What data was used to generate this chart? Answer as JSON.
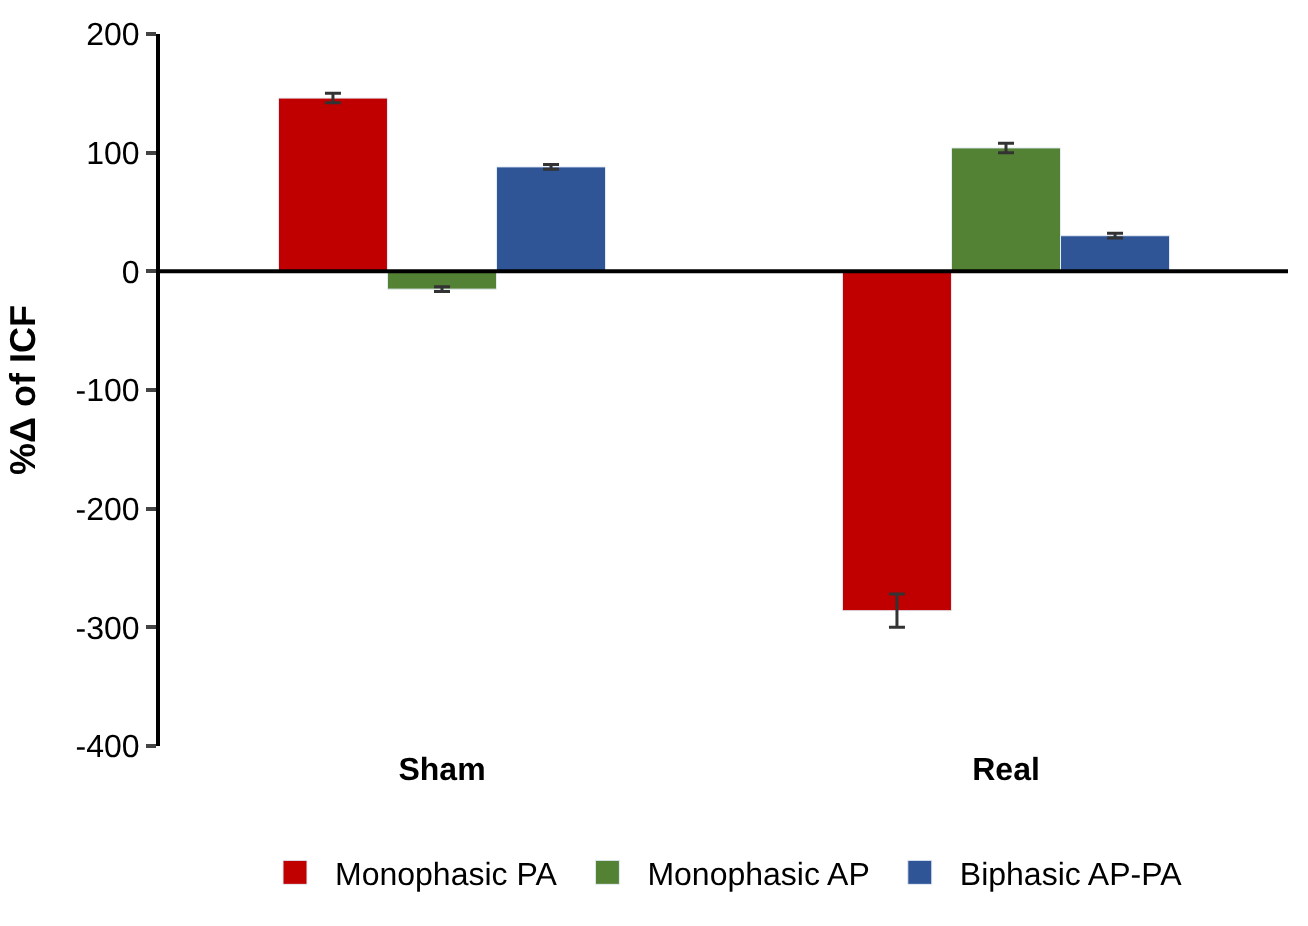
{
  "chart_data": {
    "type": "bar",
    "ylabel": "%Δ of ICF",
    "categories": [
      "Sham",
      "Real"
    ],
    "series": [
      {
        "name": "Monophasic PA",
        "color": "#c00000",
        "values": [
          146,
          -286
        ],
        "errors": [
          4,
          14
        ]
      },
      {
        "name": "Monophasic AP",
        "color": "#548235",
        "values": [
          -15,
          104
        ],
        "errors": [
          2,
          4
        ]
      },
      {
        "name": "Biphasic AP-PA",
        "color": "#2f5597",
        "values": [
          88,
          30
        ],
        "errors": [
          2,
          2
        ]
      }
    ],
    "ylim": [
      -400,
      200
    ],
    "yticks": [
      -400,
      -300,
      -200,
      -100,
      0,
      100,
      200
    ],
    "legend": "bottom"
  }
}
